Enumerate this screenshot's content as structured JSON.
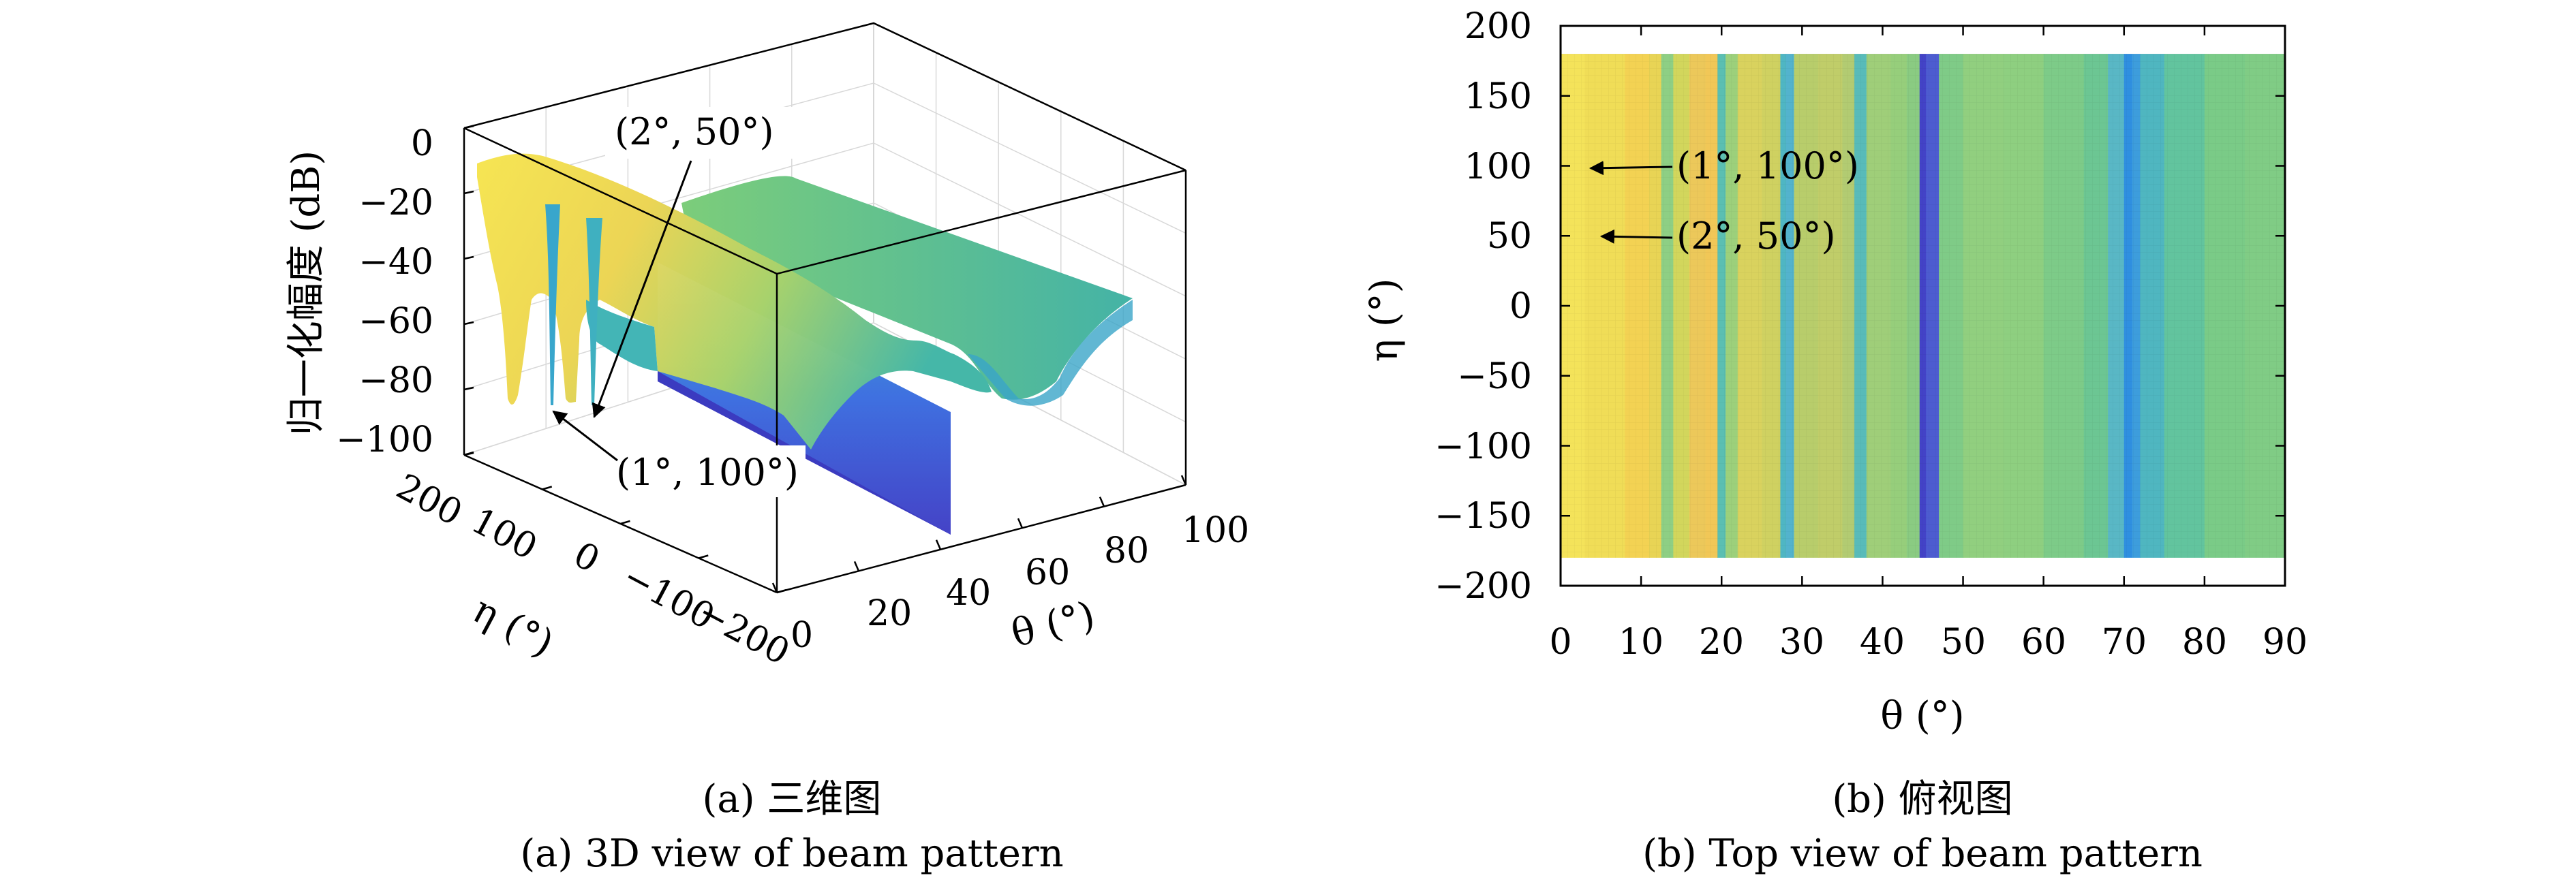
{
  "panels": {
    "a": {
      "caption_cn": "(a) 三维图",
      "caption_en": "(a) 3D view of beam pattern",
      "zlabel": "归一化幅度 (dB)",
      "xlabel": "θ (°)",
      "ylabel": "η (°)",
      "zticks": [
        "0",
        "−20",
        "−40",
        "−60",
        "−80",
        "−100"
      ],
      "xticks": [
        "0",
        "20",
        "40",
        "60",
        "80",
        "100"
      ],
      "yticks": [
        "200",
        "100",
        "0",
        "−100",
        "−200"
      ],
      "annotations": [
        "(2°, 50°)",
        "(1°, 100°)"
      ]
    },
    "b": {
      "caption_cn": "(b) 俯视图",
      "caption_en": "(b) Top view of beam pattern",
      "xlabel": "θ (°)",
      "ylabel": "η (°)",
      "xticks": [
        "0",
        "10",
        "20",
        "30",
        "40",
        "50",
        "60",
        "70",
        "80",
        "90"
      ],
      "yticks": [
        "200",
        "150",
        "100",
        "50",
        "0",
        "−50",
        "−100",
        "−150",
        "−200"
      ],
      "annotations": [
        "(1°, 100°)",
        "(2°, 50°)"
      ]
    }
  },
  "chart_data": [
    {
      "type": "heatmap",
      "view": "3d-surface",
      "title": "(a) 三维图",
      "xlabel": "θ (°)",
      "ylabel": "η (°)",
      "zlabel": "归一化幅度 (dB)",
      "xlim": [
        0,
        100
      ],
      "ylim": [
        -200,
        200
      ],
      "zlim": [
        -100,
        0
      ],
      "grid": true,
      "annotations": [
        {
          "text": "(2°, 50°)",
          "theta": 2,
          "eta": 50
        },
        {
          "text": "(1°, 100°)",
          "theta": 1,
          "eta": 100
        }
      ],
      "colormap": "parula",
      "profile_dB": {
        "theta": [
          0,
          1,
          2,
          5,
          10,
          13,
          18,
          20,
          25,
          28,
          32,
          36,
          40,
          45,
          50,
          60,
          70,
          80,
          90
        ],
        "values": [
          -12,
          -85,
          -80,
          -20,
          -22,
          -45,
          -28,
          -55,
          -40,
          -62,
          -45,
          -60,
          -50,
          -100,
          -40,
          -50,
          -70,
          -45,
          -45
        ]
      }
    },
    {
      "type": "heatmap",
      "view": "top",
      "title": "(b) 俯视图",
      "xlabel": "θ (°)",
      "ylabel": "η (°)",
      "xlim": [
        0,
        90
      ],
      "ylim": [
        -200,
        200
      ],
      "data_extent_eta": [
        -180,
        180
      ],
      "annotations": [
        {
          "text": "(1°, 100°)",
          "theta": 1,
          "eta": 100
        },
        {
          "text": "(2°, 50°)",
          "theta": 2,
          "eta": 50
        }
      ],
      "colormap": "parula",
      "column_colors": {
        "theta": [
          0,
          3,
          8,
          11,
          12.5,
          14,
          16,
          18,
          19.5,
          20.5,
          22,
          25,
          27.3,
          28,
          29,
          32,
          35,
          36.5,
          38,
          41,
          43,
          44.6,
          45.4,
          47,
          50,
          55,
          60,
          65,
          68,
          70,
          71,
          72,
          75,
          80,
          85,
          90
        ],
        "colors": [
          "#f4e35a",
          "#f0dd57",
          "#f3d253",
          "#e8d455",
          "#8ecf84",
          "#d2d65c",
          "#ecc85a",
          "#f1c757",
          "#5bbfb2",
          "#9cd07b",
          "#d9d25e",
          "#cfd161",
          "#4fb6c3",
          "#53b3cd",
          "#b8cd6b",
          "#c0cd69",
          "#b2cb72",
          "#58bbb9",
          "#9fce79",
          "#96ce7b",
          "#8acb82",
          "#4343c7",
          "#4d5cd0",
          "#7fcb87",
          "#91cf7f",
          "#8ecf80",
          "#7dcb88",
          "#6cc693",
          "#59b7c5",
          "#2f8fe0",
          "#3d9ddc",
          "#4fb6c0",
          "#62c49e",
          "#7acb87",
          "#80cc85",
          "#7fcb86"
        ]
      }
    }
  ]
}
